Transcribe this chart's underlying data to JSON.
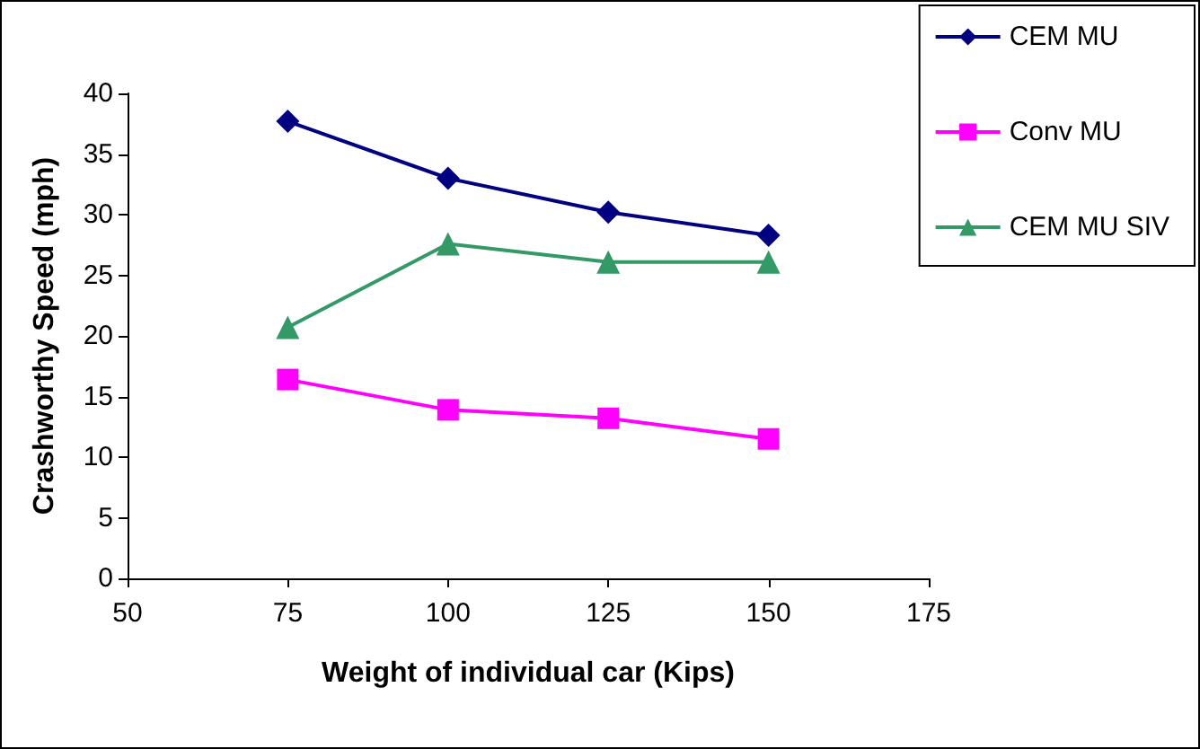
{
  "chart_data": {
    "type": "line",
    "xlabel": "Weight of individual car (Kips)",
    "ylabel": "Crashworthy Speed (mph)",
    "x": [
      75,
      100,
      125,
      150
    ],
    "series": [
      {
        "name": "CEM MU",
        "color": "#000080",
        "marker": "diamond",
        "values": [
          37.7,
          33,
          30.2,
          28.3
        ]
      },
      {
        "name": "Conv MU",
        "color": "#ff00ff",
        "marker": "square",
        "values": [
          16.4,
          13.9,
          13.2,
          11.5
        ]
      },
      {
        "name": "CEM MU SIV",
        "color": "#339966",
        "marker": "triangle",
        "values": [
          20.7,
          27.6,
          26.1,
          26.1
        ]
      }
    ],
    "xlim": [
      50,
      175
    ],
    "xticks": [
      50,
      75,
      100,
      125,
      150,
      175
    ],
    "ylim": [
      0,
      40
    ],
    "yticks": [
      0,
      5,
      10,
      15,
      20,
      25,
      30,
      35,
      40
    ],
    "grid": false,
    "legend": "top right",
    "line_style": "solid"
  }
}
